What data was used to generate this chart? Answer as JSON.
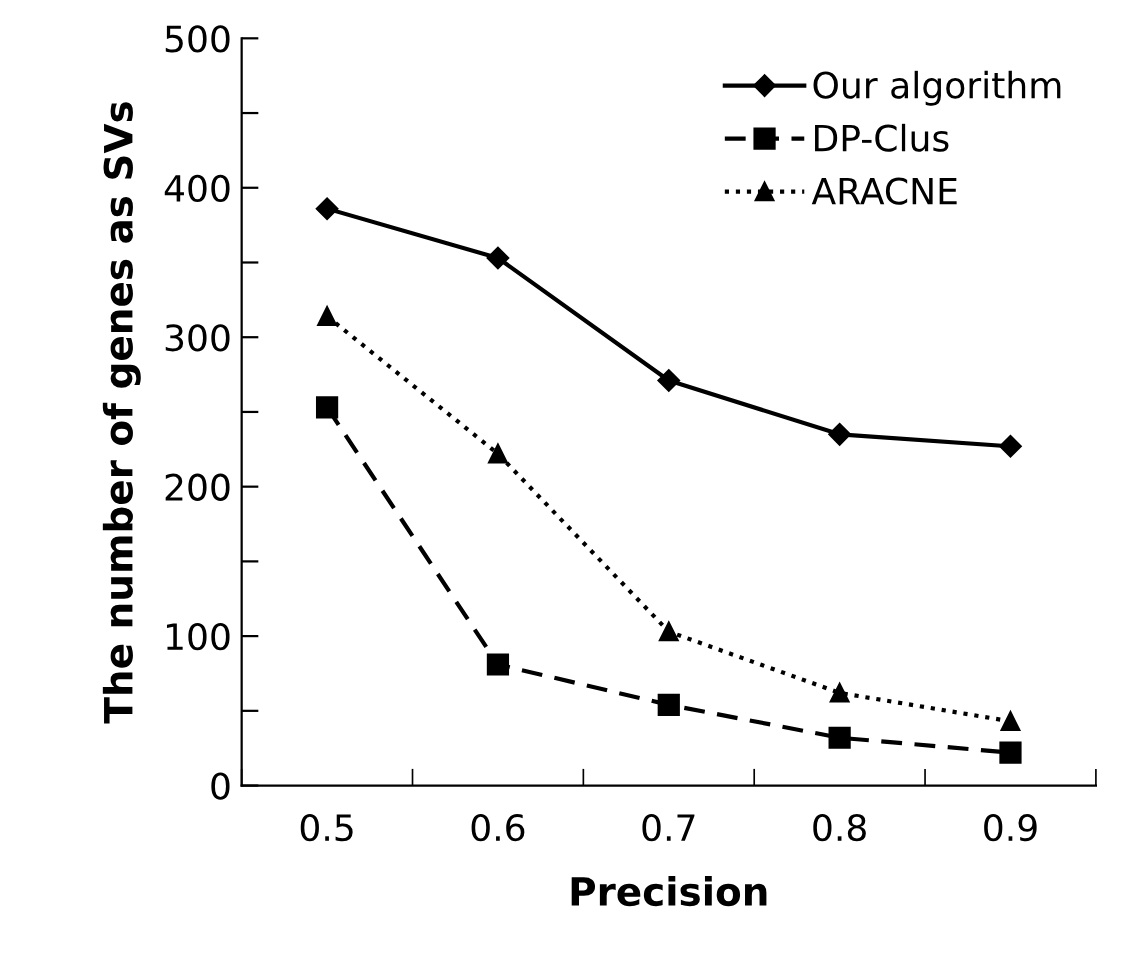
{
  "chart_data": {
    "type": "line",
    "xlabel": "Precision",
    "ylabel": "The number of genes as SVs",
    "categories": [
      "0.5",
      "0.6",
      "0.7",
      "0.8",
      "0.9"
    ],
    "series": [
      {
        "name": "Our algorithm",
        "color": "#000000",
        "marker": "diamond",
        "line_style": "solid",
        "values": [
          386,
          353,
          271,
          235,
          227
        ]
      },
      {
        "name": "DP-Clus",
        "color": "#000000",
        "marker": "square",
        "line_style": "dashed",
        "values": [
          253,
          81,
          54,
          32,
          22
        ]
      },
      {
        "name": "ARACNE",
        "color": "#000000",
        "marker": "triangle",
        "line_style": "dotted",
        "values": [
          314,
          222,
          103,
          62,
          43
        ]
      }
    ],
    "ylim": [
      0,
      500
    ],
    "yticks": [
      0,
      {
        "value": 50,
        "label": null
      },
      100,
      {
        "value": 150,
        "label": null
      },
      200,
      {
        "value": 250,
        "label": null
      },
      300,
      {
        "value": 350,
        "label": null
      },
      400,
      {
        "value": 450,
        "label": null
      },
      500
    ],
    "grid": false,
    "legend": "top right"
  }
}
